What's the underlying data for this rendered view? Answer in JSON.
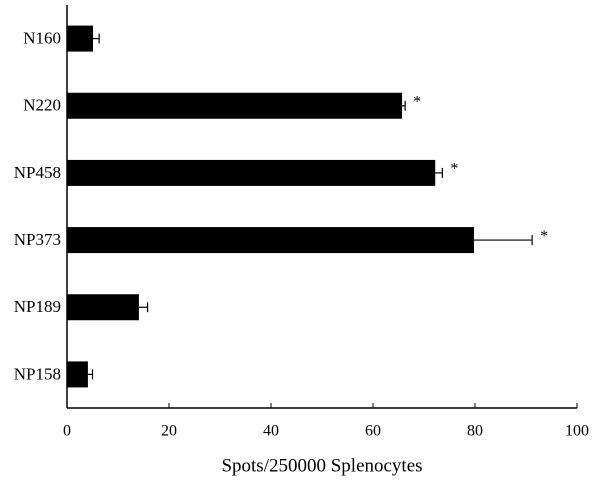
{
  "chart_data": {
    "type": "bar",
    "orientation": "horizontal",
    "xlabel": "Spots/250000 Splenocytes",
    "categories": [
      "N160",
      "N220",
      "NP458",
      "NP373",
      "NP189",
      "NP158"
    ],
    "values": [
      5.1,
      65.7,
      72.2,
      79.8,
      14.1,
      4.1
    ],
    "errors": [
      1.2,
      0.6,
      1.4,
      11.4,
      1.7,
      0.9
    ],
    "markers": [
      null,
      "*",
      "*",
      "*",
      null,
      null
    ],
    "color": "#000000",
    "xlim": [
      0,
      100
    ],
    "xticks": [
      0,
      20,
      40,
      60,
      80,
      100
    ]
  }
}
